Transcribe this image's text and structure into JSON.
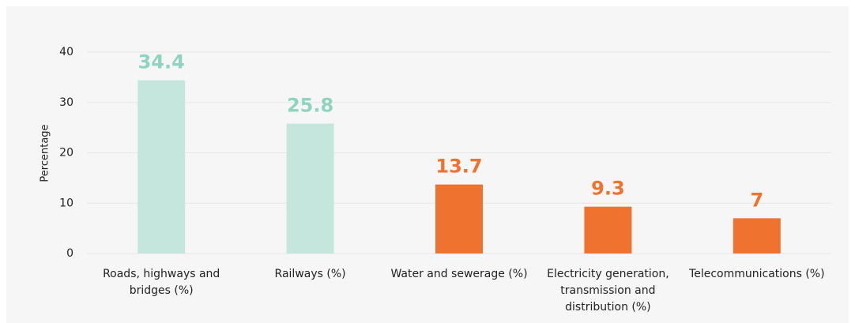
{
  "chart_data": {
    "type": "bar",
    "y_label": "Percentage",
    "categories": [
      "Roads, highways and bridges (%)",
      "Railways (%)",
      "Water and sewerage (%)",
      "Electricity generation, transmission and distribution (%)",
      "Telecommunications (%)"
    ],
    "values": [
      34.4,
      25.8,
      13.7,
      9.3,
      7
    ],
    "colors": [
      "#c4e6dc",
      "#c4e6dc",
      "#f0722f",
      "#f0722f",
      "#f0722f"
    ],
    "label_colors": [
      "#8fd3c1",
      "#8fd3c1",
      "#f0722f",
      "#f0722f",
      "#f0722f"
    ],
    "ylim": [
      0,
      40
    ],
    "yticks": [
      0,
      10,
      20,
      30,
      40
    ],
    "grid": true
  }
}
